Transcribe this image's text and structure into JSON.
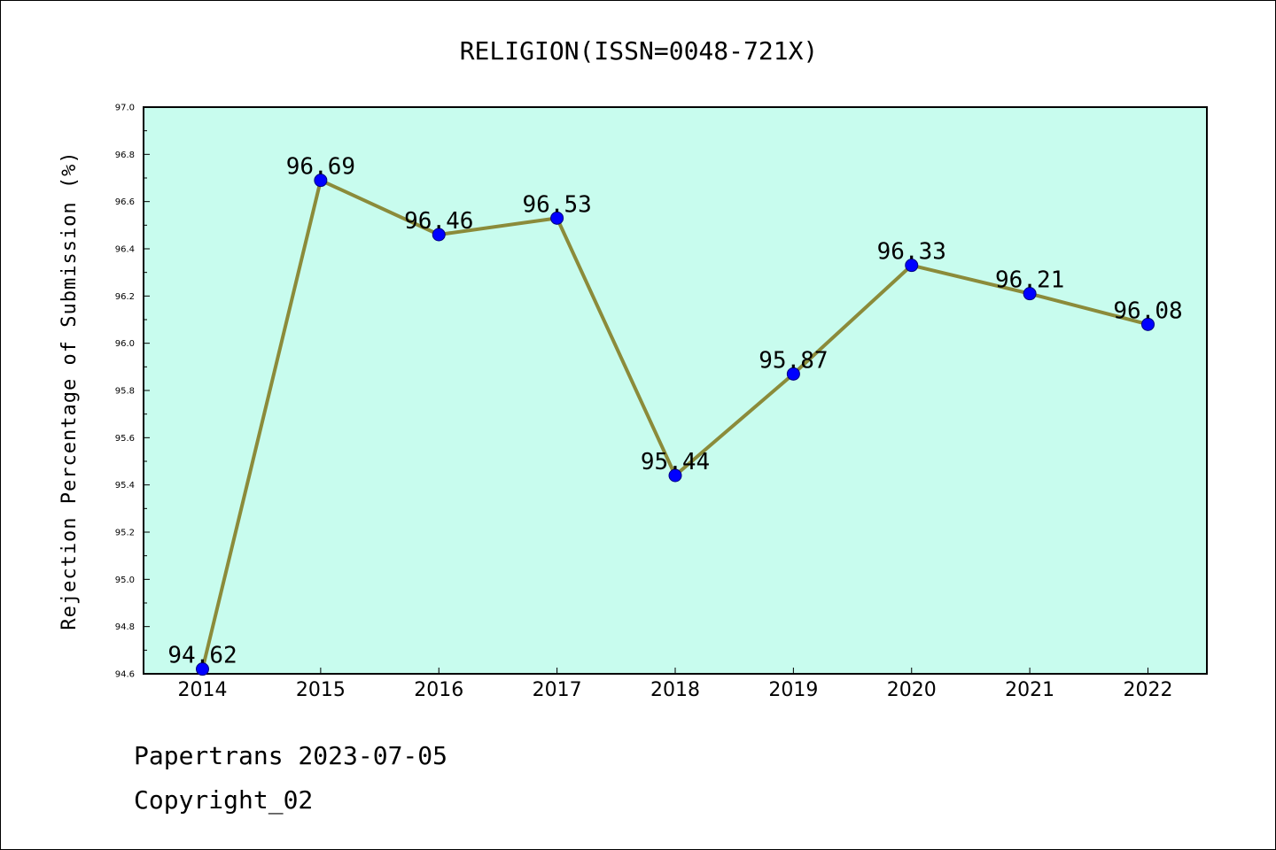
{
  "chart_data": {
    "type": "line",
    "title": "RELIGION(ISSN=0048-721X)",
    "xlabel": "",
    "ylabel": "Rejection Percentage of Submission (%)",
    "categories": [
      "2014",
      "2015",
      "2016",
      "2017",
      "2018",
      "2019",
      "2020",
      "2021",
      "2022"
    ],
    "series": [
      {
        "values": [
          94.62,
          96.69,
          96.46,
          96.53,
          95.44,
          95.87,
          96.33,
          96.21,
          96.08
        ],
        "data_labels": [
          "94.62",
          "96.69",
          "96.46",
          "96.53",
          "95.44",
          "95.87",
          "96.33",
          "96.21",
          "96.08"
        ]
      }
    ],
    "ylim": [
      94.6,
      97.0
    ],
    "yticks": [
      "94.6",
      "94.8",
      "95.0",
      "95.2",
      "95.4",
      "95.6",
      "95.8",
      "96.0",
      "96.2",
      "96.4",
      "96.6",
      "96.8",
      "97.0"
    ],
    "grid": false,
    "colors": {
      "plot_background": "#c8fcee",
      "line": "#8b8b3a",
      "marker": "#0000ff"
    }
  },
  "footer": {
    "source": "Papertrans 2023-07-05",
    "copyright": "Copyright_02"
  }
}
